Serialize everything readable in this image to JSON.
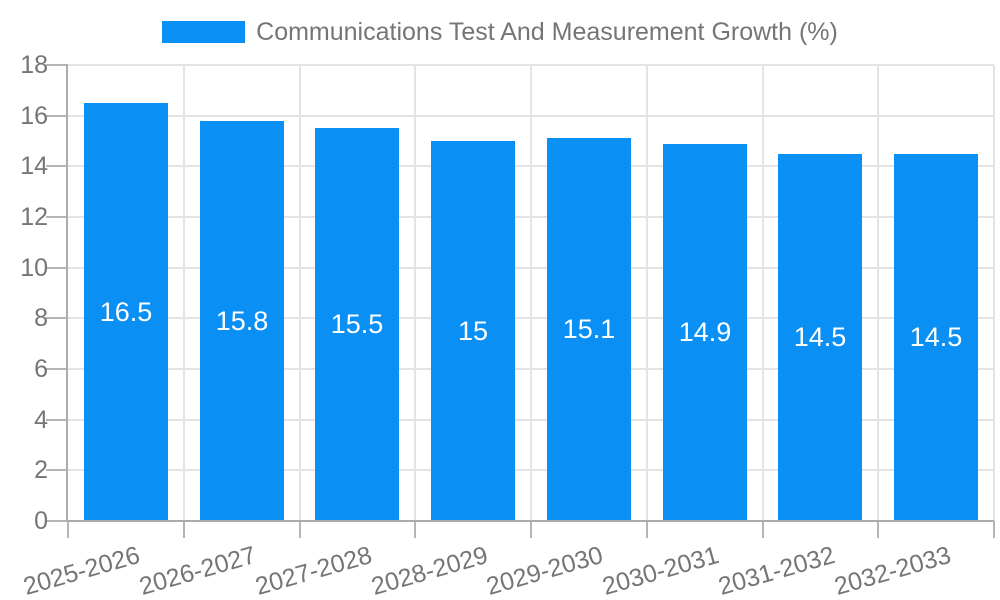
{
  "colors": {
    "bar": "#0A8FF5",
    "axis_text": "#757575",
    "grid_line": "#e3e3e3",
    "axis_line": "#ababab",
    "tick_mark": "#b5b5b5",
    "value_label": "#ffffff",
    "background": "#ffffff"
  },
  "legend": {
    "label": "Communications Test And Measurement Growth (%)"
  },
  "chart_data": {
    "type": "bar",
    "title": "Communications Test And Measurement Growth (%)",
    "categories": [
      "2025-2026",
      "2026-2027",
      "2027-2028",
      "2028-2029",
      "2029-2030",
      "2030-2031",
      "2031-2032",
      "2032-2033"
    ],
    "values": [
      16.5,
      15.8,
      15.5,
      15,
      15.1,
      14.9,
      14.5,
      14.5
    ],
    "xlabel": "",
    "ylabel": "",
    "ylim": [
      0,
      18
    ],
    "ytick_step": 2,
    "ytick_labels": [
      "0",
      "2",
      "4",
      "6",
      "8",
      "10",
      "12",
      "14",
      "16",
      "18"
    ],
    "grid": "both",
    "legend_position": "top",
    "bar_value_labels_inside": true,
    "x_tick_label_rotation_deg": -16
  }
}
